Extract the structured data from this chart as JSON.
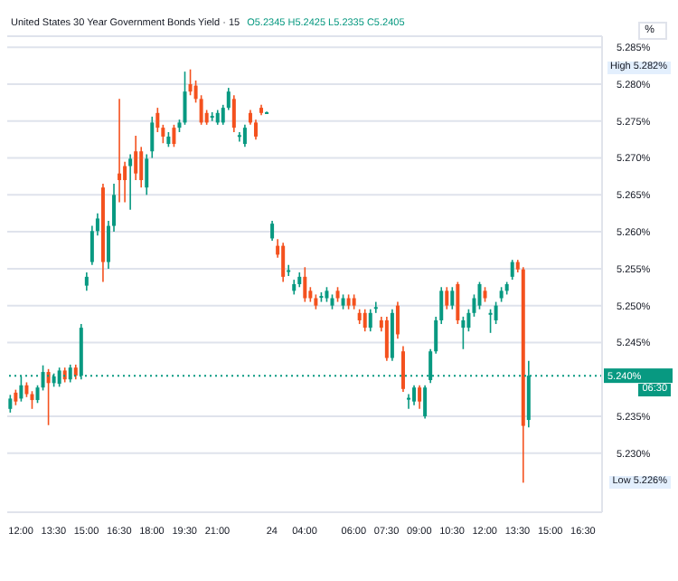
{
  "chart_data": {
    "type": "candlestick",
    "title": "United States 30 Year Government Bonds Yield · 15",
    "subtitle": "O5.2345 H5.2425 L5.2335 C5.2405",
    "categories": [
      null,
      null,
      "12:00",
      null,
      null,
      null,
      null,
      null,
      "13:30",
      null,
      null,
      null,
      null,
      null,
      "15:00",
      null,
      null,
      null,
      null,
      null,
      "16:30",
      null,
      null,
      null,
      null,
      null,
      "18:00",
      null,
      null,
      null,
      null,
      null,
      "19:30",
      null,
      null,
      null,
      null,
      null,
      "21:00",
      null,
      null,
      null,
      null,
      null,
      null,
      null,
      null,
      null,
      "24",
      null,
      null,
      null,
      null,
      null,
      "04:00",
      null,
      null,
      null,
      null,
      null,
      null,
      null,
      null,
      "06:00",
      null,
      null,
      null,
      null,
      null,
      "07:30",
      null,
      null,
      null,
      null,
      null,
      "09:00",
      null,
      null,
      null,
      null,
      null,
      "10:30",
      null,
      null,
      null,
      null,
      null,
      "12:00",
      null,
      null,
      null,
      null,
      null,
      "13:30",
      null,
      null,
      null,
      null,
      null,
      "15:00",
      null,
      null,
      null,
      null,
      null,
      "16:30",
      null,
      null,
      null
    ],
    "ohlc": [
      [
        5.236,
        5.2379,
        5.2355,
        5.2374
      ],
      [
        5.2382,
        5.2386,
        5.2365,
        5.237
      ],
      [
        5.2374,
        5.2404,
        5.237,
        5.2392
      ],
      [
        5.2392,
        5.2396,
        5.2376,
        5.238
      ],
      [
        5.238,
        5.2384,
        5.236,
        5.2372
      ],
      [
        5.2372,
        5.2392,
        5.2368,
        5.2389
      ],
      [
        5.2389,
        5.2419,
        5.2385,
        5.241
      ],
      [
        5.241,
        5.2414,
        5.2338,
        5.2395
      ],
      [
        5.2395,
        5.2408,
        5.239,
        5.2404
      ],
      [
        5.2394,
        5.2416,
        5.239,
        5.2412
      ],
      [
        5.2412,
        5.2416,
        5.2396,
        5.24
      ],
      [
        5.24,
        5.242,
        5.2396,
        5.2416
      ],
      [
        5.2416,
        5.242,
        5.24,
        5.2405
      ],
      [
        5.2405,
        5.2475,
        5.24,
        5.247
      ],
      [
        5.2527,
        5.2545,
        5.252,
        5.2539
      ],
      [
        5.2559,
        5.2608,
        5.2555,
        5.2601
      ],
      [
        5.2601,
        5.2625,
        5.2595,
        5.2618
      ],
      [
        5.266,
        5.2665,
        5.2532,
        5.2559
      ],
      [
        5.2559,
        5.2615,
        5.255,
        5.2608
      ],
      [
        5.2608,
        5.2665,
        5.26,
        5.265
      ],
      [
        5.2679,
        5.278,
        5.264,
        5.267
      ],
      [
        5.2689,
        5.2695,
        5.264,
        5.267
      ],
      [
        5.2689,
        5.2705,
        5.263,
        5.2699
      ],
      [
        5.2709,
        5.273,
        5.267,
        5.2679
      ],
      [
        5.2709,
        5.2715,
        5.266,
        5.267
      ],
      [
        5.266,
        5.2705,
        5.265,
        5.2699
      ],
      [
        5.2709,
        5.2756,
        5.27,
        5.2748
      ],
      [
        5.2761,
        5.2768,
        5.2735,
        5.2741
      ],
      [
        5.2741,
        5.2745,
        5.272,
        5.2729
      ],
      [
        5.2719,
        5.2735,
        5.2715,
        5.2729
      ],
      [
        5.2741,
        5.2745,
        5.2715,
        5.2719
      ],
      [
        5.2741,
        5.2752,
        5.2735,
        5.2748
      ],
      [
        5.2748,
        5.2817,
        5.2745,
        5.279
      ],
      [
        5.28,
        5.282,
        5.2785,
        5.279
      ],
      [
        5.2798,
        5.2805,
        5.2775,
        5.278
      ],
      [
        5.278,
        5.2785,
        5.2745,
        5.2748
      ],
      [
        5.2761,
        5.2765,
        5.2745,
        5.2748
      ],
      [
        5.2755,
        5.2762,
        5.275,
        5.2757
      ],
      [
        5.2748,
        5.2765,
        5.2745,
        5.2761
      ],
      [
        5.2748,
        5.2772,
        5.2745,
        5.2768
      ],
      [
        5.2768,
        5.2795,
        5.2765,
        5.279
      ],
      [
        5.278,
        5.2785,
        5.2735,
        5.2741
      ],
      [
        5.2729,
        5.2735,
        5.2722,
        5.2731
      ],
      [
        5.2719,
        5.2745,
        5.2715,
        5.2741
      ],
      [
        5.2761,
        5.2765,
        5.2745,
        5.2748
      ],
      [
        5.2748,
        5.2752,
        5.2725,
        5.2729
      ],
      [
        5.2768,
        5.2772,
        5.2758,
        5.2761
      ],
      [
        5.2761,
        5.2763,
        5.276,
        5.2762
      ],
      [
        5.2591,
        5.2615,
        5.2588,
        5.2611
      ],
      [
        5.2581,
        5.259,
        5.2565,
        5.2569
      ],
      [
        5.2581,
        5.2585,
        5.2532,
        5.2539
      ],
      [
        5.2547,
        5.2555,
        5.254,
        5.2548
      ],
      [
        5.252,
        5.2535,
        5.2515,
        5.2529
      ],
      [
        5.2529,
        5.2545,
        5.2525,
        5.2539
      ],
      [
        5.2539,
        5.2552,
        5.2505,
        5.251
      ],
      [
        5.252,
        5.2525,
        5.2505,
        5.251
      ],
      [
        5.251,
        5.2515,
        5.2495,
        5.25
      ],
      [
        5.2512,
        5.2518,
        5.2505,
        5.2513
      ],
      [
        5.251,
        5.2525,
        5.2505,
        5.252
      ],
      [
        5.25,
        5.2515,
        5.2495,
        5.251
      ],
      [
        5.252,
        5.2525,
        5.2505,
        5.251
      ],
      [
        5.25,
        5.2515,
        5.2495,
        5.251
      ],
      [
        5.251,
        5.2515,
        5.2495,
        5.25
      ],
      [
        5.251,
        5.2515,
        5.2495,
        5.25
      ],
      [
        5.249,
        5.2495,
        5.2475,
        5.248
      ],
      [
        5.249,
        5.2495,
        5.2465,
        5.247
      ],
      [
        5.247,
        5.2495,
        5.2465,
        5.249
      ],
      [
        5.2497,
        5.2505,
        5.249,
        5.2498
      ],
      [
        5.248,
        5.2485,
        5.2465,
        5.247
      ],
      [
        5.248,
        5.2485,
        5.2425,
        5.2429
      ],
      [
        5.2429,
        5.2495,
        5.2425,
        5.249
      ],
      [
        5.25,
        5.2505,
        5.2455,
        5.2461
      ],
      [
        5.2438,
        5.2445,
        5.2383,
        5.2387
      ],
      [
        5.2374,
        5.238,
        5.236,
        5.2375
      ],
      [
        5.237,
        5.2392,
        5.2365,
        5.2389
      ],
      [
        5.2389,
        5.2392,
        5.236,
        5.237
      ],
      [
        5.235,
        5.2392,
        5.2347,
        5.2389
      ],
      [
        5.2399,
        5.2441,
        5.2395,
        5.2438
      ],
      [
        5.2438,
        5.2485,
        5.2435,
        5.248
      ],
      [
        5.248,
        5.2525,
        5.2475,
        5.252
      ],
      [
        5.252,
        5.2525,
        5.2495,
        5.25
      ],
      [
        5.25,
        5.2525,
        5.2495,
        5.252
      ],
      [
        5.2529,
        5.2532,
        5.2475,
        5.248
      ],
      [
        5.247,
        5.2485,
        5.2441,
        5.248
      ],
      [
        5.247,
        5.2495,
        5.2465,
        5.249
      ],
      [
        5.249,
        5.2515,
        5.2485,
        5.251
      ],
      [
        5.25,
        5.2532,
        5.2495,
        5.2529
      ],
      [
        5.252,
        5.2525,
        5.2505,
        5.251
      ],
      [
        5.2489,
        5.2495,
        5.2463,
        5.249
      ],
      [
        5.248,
        5.2505,
        5.2475,
        5.25
      ],
      [
        5.251,
        5.2525,
        5.2505,
        5.252
      ],
      [
        5.252,
        5.2532,
        5.2515,
        5.2529
      ],
      [
        5.2539,
        5.2562,
        5.2535,
        5.2559
      ],
      [
        5.2559,
        5.2562,
        5.2545,
        5.2549
      ],
      [
        5.2549,
        5.2552,
        5.226,
        5.2337
      ],
      [
        5.2345,
        5.2425,
        5.2335,
        5.2405
      ],
      null,
      null,
      null,
      null,
      null,
      null,
      null,
      null,
      null,
      null,
      null,
      null,
      null
    ],
    "colors": [
      "#089981",
      "#f4511e",
      "#089981",
      "#f4511e",
      "#f4511e",
      "#089981",
      "#089981",
      "#f4511e",
      "#089981",
      "#089981",
      "#f4511e",
      "#089981",
      "#f4511e",
      "#089981",
      "#089981",
      "#089981",
      "#089981",
      "#f4511e",
      "#089981",
      "#089981",
      "#f4511e",
      "#f4511e",
      "#089981",
      "#f4511e",
      "#f4511e",
      "#089981",
      "#089981",
      "#f4511e",
      "#f4511e",
      "#089981",
      "#f4511e",
      "#089981",
      "#089981",
      "#f4511e",
      "#f4511e",
      "#f4511e",
      "#f4511e",
      "#089981",
      "#089981",
      "#089981",
      "#089981",
      "#f4511e",
      "#089981",
      "#089981",
      "#f4511e",
      "#f4511e",
      "#f4511e",
      "#089981",
      "#089981",
      "#f4511e",
      "#f4511e",
      "#089981",
      "#089981",
      "#089981",
      "#f4511e",
      "#f4511e",
      "#f4511e",
      "#089981",
      "#089981",
      "#089981",
      "#f4511e",
      "#089981",
      "#f4511e",
      "#f4511e",
      "#f4511e",
      "#f4511e",
      "#089981",
      "#089981",
      "#f4511e",
      "#f4511e",
      "#089981",
      "#f4511e",
      "#f4511e",
      "#089981",
      "#089981",
      "#f4511e",
      "#089981",
      "#089981",
      "#089981",
      "#089981",
      "#f4511e",
      "#089981",
      "#f4511e",
      "#089981",
      "#089981",
      "#089981",
      "#089981",
      "#f4511e",
      "#089981",
      "#089981",
      "#089981",
      "#089981",
      "#089981",
      "#f4511e",
      "#f4511e",
      "#089981",
      null,
      null,
      null,
      null,
      null,
      null,
      null,
      null,
      null,
      null,
      null,
      null,
      null
    ],
    "ylim": [
      5.222,
      5.2865
    ],
    "yticks": [
      {
        "value": 5.23,
        "label": "5.230%"
      },
      {
        "value": 5.235,
        "label": "5.235%"
      },
      {
        "value": 5.245,
        "label": "5.245%"
      },
      {
        "value": 5.25,
        "label": "5.250%"
      },
      {
        "value": 5.255,
        "label": "5.255%"
      },
      {
        "value": 5.26,
        "label": "5.260%"
      },
      {
        "value": 5.265,
        "label": "5.265%"
      },
      {
        "value": 5.27,
        "label": "5.270%"
      },
      {
        "value": 5.275,
        "label": "5.275%"
      },
      {
        "value": 5.28,
        "label": "5.280%"
      },
      {
        "value": 5.285,
        "label": "5.285%"
      }
    ],
    "grid": "y",
    "ref_lines": [
      {
        "axis": "y",
        "value": 5.2405,
        "label": "5.240%",
        "color": "#089981",
        "line_style": "dotted"
      }
    ],
    "annotations": [
      "High 5.282%",
      "Low 5.226%",
      "06:30",
      "%"
    ]
  }
}
